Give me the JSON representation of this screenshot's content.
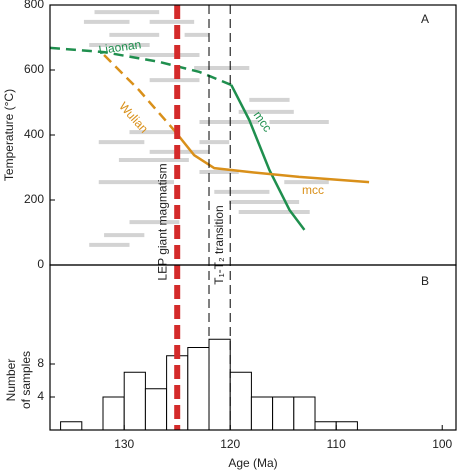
{
  "chart_data": [
    {
      "type": "line",
      "panel": "A",
      "ylabel": "Temperature (°C)",
      "xlim": [
        137,
        98.7
      ],
      "ylim": [
        0,
        800
      ],
      "yticks": [
        0,
        200,
        400,
        600,
        800
      ],
      "series": [
        {
          "name": "Liaonan",
          "color": "#1f8f4e",
          "dashed": true,
          "x": [
            137,
            131.9,
            126.7,
            122.9,
            119.9
          ],
          "values": [
            668,
            655,
            625,
            594,
            554
          ]
        },
        {
          "name": "mcc",
          "color": "#1f8f4e",
          "dashed": false,
          "x": [
            119.9,
            118.2,
            116.3,
            114.4,
            113.0
          ],
          "values": [
            554,
            446,
            292,
            169,
            108
          ]
        },
        {
          "name": "Wulian",
          "color": "#d9901a",
          "dashed": true,
          "x": [
            131.9,
            128.6,
            125.3
          ],
          "values": [
            646,
            538,
            415
          ]
        },
        {
          "name": "mcc",
          "color": "#d9901a",
          "dashed": false,
          "x": [
            125.3,
            123.4,
            121.5,
            118.2,
            113.5,
            106.9
          ],
          "values": [
            415,
            338,
            298,
            286,
            271,
            255
          ]
        }
      ],
      "range_color": "#d3d3d3",
      "ranges": [
        {
          "x": [
            132.8,
            126.7
          ],
          "y": 778
        },
        {
          "x": [
            133.8,
            129.5
          ],
          "y": 748
        },
        {
          "x": [
            127.6,
            123.4
          ],
          "y": 748
        },
        {
          "x": [
            131.4,
            126.7
          ],
          "y": 708
        },
        {
          "x": [
            124.3,
            122.0
          ],
          "y": 708
        },
        {
          "x": [
            133.3,
            127.6
          ],
          "y": 677
        },
        {
          "x": [
            129.5,
            122.9
          ],
          "y": 646
        },
        {
          "x": [
            123.4,
            118.2
          ],
          "y": 606
        },
        {
          "x": [
            127.6,
            122.9
          ],
          "y": 569
        },
        {
          "x": [
            118.2,
            114.4
          ],
          "y": 508
        },
        {
          "x": [
            119.2,
            114.0
          ],
          "y": 471
        },
        {
          "x": [
            122.9,
            117.3
          ],
          "y": 440
        },
        {
          "x": [
            116.3,
            110.7
          ],
          "y": 440
        },
        {
          "x": [
            129.5,
            124.8
          ],
          "y": 409
        },
        {
          "x": [
            132.4,
            128.1
          ],
          "y": 378
        },
        {
          "x": [
            122.9,
            120.1
          ],
          "y": 378
        },
        {
          "x": [
            127.6,
            122.0
          ],
          "y": 348
        },
        {
          "x": [
            130.5,
            123.9
          ],
          "y": 323
        },
        {
          "x": [
            122.9,
            119.2
          ],
          "y": 286
        },
        {
          "x": [
            132.4,
            125.3
          ],
          "y": 255
        },
        {
          "x": [
            114.9,
            110.7
          ],
          "y": 255
        },
        {
          "x": [
            121.5,
            116.3
          ],
          "y": 225
        },
        {
          "x": [
            120.1,
            113.5
          ],
          "y": 194
        },
        {
          "x": [
            119.2,
            112.5
          ],
          "y": 163
        },
        {
          "x": [
            129.5,
            124.8
          ],
          "y": 132
        },
        {
          "x": [
            131.9,
            128.1
          ],
          "y": 92
        },
        {
          "x": [
            133.3,
            129.5
          ],
          "y": 62
        }
      ],
      "vlines": [
        {
          "x": 125,
          "color": "#d42a2a",
          "label": "LEP giant magmatism"
        },
        {
          "x": [
            122,
            120
          ],
          "color": "#000000",
          "label": "T₁-T₂ transition"
        }
      ]
    },
    {
      "type": "histogram",
      "panel": "B",
      "ylabel": [
        "Number",
        "of samples"
      ],
      "xlabel": "Age (Ma)",
      "xlim": [
        137,
        98.7
      ],
      "xticks": [
        130,
        120,
        110,
        100
      ],
      "ylim": [
        0,
        20
      ],
      "yticks": [
        4,
        8
      ],
      "bins": [
        136,
        134,
        132,
        130,
        128,
        126,
        124,
        122,
        120,
        118,
        116,
        114,
        112,
        110,
        108
      ],
      "counts": [
        1,
        0,
        4,
        7,
        5,
        9,
        10,
        11,
        7,
        4,
        4,
        4,
        1,
        1
      ]
    }
  ]
}
